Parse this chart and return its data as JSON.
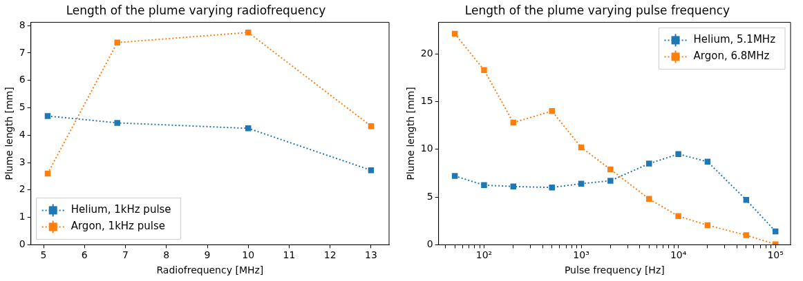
{
  "chart_data": [
    {
      "type": "line",
      "title": "Length of the plume varying radiofrequency",
      "xlabel": "Radiofrequency [MHz]",
      "ylabel": "Plume length [mm]",
      "xlim": [
        4.69,
        13.44
      ],
      "xticks": [
        5,
        6,
        7,
        8,
        9,
        10,
        11,
        12,
        13
      ],
      "ylim": [
        0,
        8.12
      ],
      "yticks": [
        0,
        1,
        2,
        3,
        4,
        5,
        6,
        7,
        8
      ],
      "x": [
        5.1,
        6.8,
        10,
        13
      ],
      "series": [
        {
          "name": "Helium, 1kHz pulse",
          "color": "#1f77b4",
          "values": [
            4.7,
            4.45,
            4.25,
            2.72
          ]
        },
        {
          "name": "Argon, 1kHz pulse",
          "color": "#ff7f0e",
          "values": [
            2.6,
            7.38,
            7.75,
            4.33
          ]
        }
      ],
      "marker": "square",
      "line_style": "dotted",
      "legend": "bottom left",
      "grid": false
    },
    {
      "type": "line",
      "title": "Length of the plume varying pulse frequency",
      "xlabel": "Pulse frequency [Hz]",
      "ylabel": "Plume length [mm]",
      "log": "x",
      "xlim": [
        34,
        143000
      ],
      "xticks": [
        {
          "value": 40,
          "label": null
        },
        {
          "value": 50,
          "label": null
        },
        {
          "value": 60,
          "label": null
        },
        {
          "value": 70,
          "label": null
        },
        {
          "value": 80,
          "label": null
        },
        {
          "value": 90,
          "label": null
        },
        {
          "value": 100,
          "label": "10²"
        },
        {
          "value": 200,
          "label": null
        },
        {
          "value": 300,
          "label": null
        },
        {
          "value": 400,
          "label": null
        },
        {
          "value": 500,
          "label": null
        },
        {
          "value": 600,
          "label": null
        },
        {
          "value": 700,
          "label": null
        },
        {
          "value": 800,
          "label": null
        },
        {
          "value": 900,
          "label": null
        },
        {
          "value": 1000,
          "label": "10³"
        },
        {
          "value": 2000,
          "label": null
        },
        {
          "value": 3000,
          "label": null
        },
        {
          "value": 4000,
          "label": null
        },
        {
          "value": 5000,
          "label": null
        },
        {
          "value": 6000,
          "label": null
        },
        {
          "value": 7000,
          "label": null
        },
        {
          "value": 8000,
          "label": null
        },
        {
          "value": 9000,
          "label": null
        },
        {
          "value": 10000,
          "label": "10⁴"
        },
        {
          "value": 20000,
          "label": null
        },
        {
          "value": 30000,
          "label": null
        },
        {
          "value": 40000,
          "label": null
        },
        {
          "value": 50000,
          "label": null
        },
        {
          "value": 60000,
          "label": null
        },
        {
          "value": 70000,
          "label": null
        },
        {
          "value": 80000,
          "label": null
        },
        {
          "value": 90000,
          "label": null
        },
        {
          "value": 100000,
          "label": "10⁵"
        }
      ],
      "ylim": [
        0,
        23.3
      ],
      "yticks": [
        0,
        5,
        10,
        15,
        20
      ],
      "x": [
        50,
        100,
        200,
        500,
        1000,
        2000,
        5000,
        10000,
        20000,
        50000,
        100000
      ],
      "series": [
        {
          "name": "Helium, 5.1MHz",
          "color": "#1f77b4",
          "values": [
            7.2,
            6.25,
            6.1,
            6.0,
            6.4,
            6.7,
            8.5,
            9.5,
            8.7,
            4.7,
            1.4
          ]
        },
        {
          "name": "Argon, 6.8MHz",
          "color": "#ff7f0e",
          "values": [
            22.1,
            18.3,
            12.8,
            14.0,
            10.2,
            7.9,
            4.8,
            3.0,
            2.05,
            1.0,
            0.05
          ]
        }
      ],
      "marker": "square",
      "line_style": "dotted",
      "legend": "top right",
      "grid": false
    }
  ]
}
